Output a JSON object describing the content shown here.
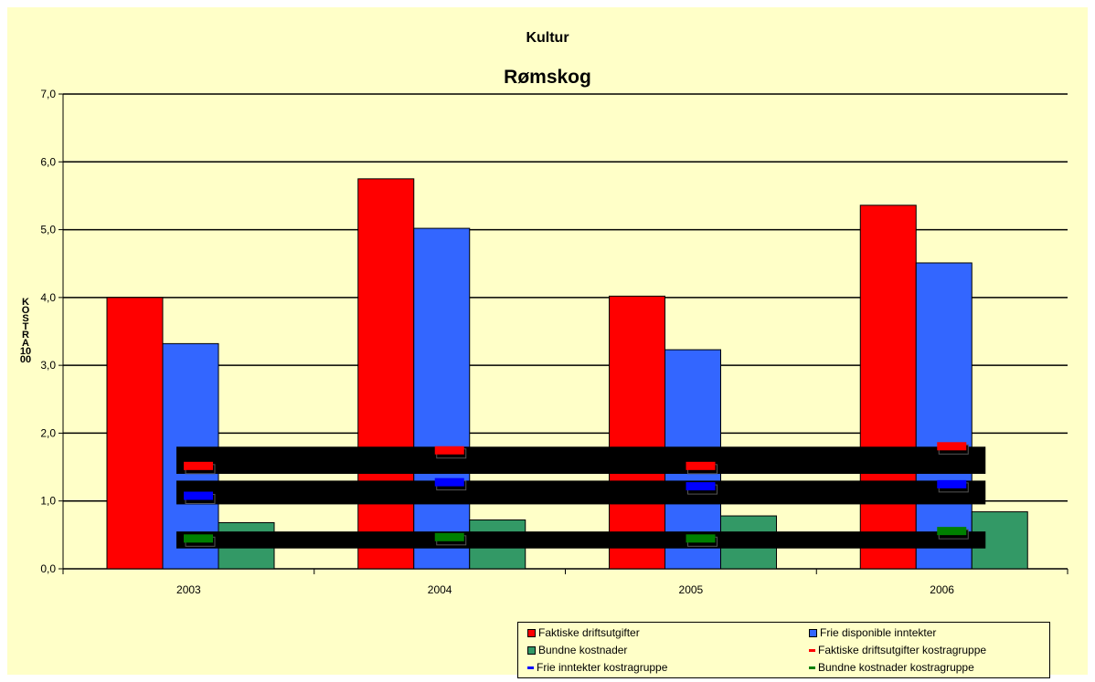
{
  "chart_data": {
    "type": "bar",
    "title": "Kultur",
    "subtitle": "Rømskog",
    "ylabel": "KOSTRA 1000",
    "categories": [
      "2003",
      "2004",
      "2005",
      "2006"
    ],
    "ylim": [
      0,
      7
    ],
    "yticks": [
      "0,0",
      "1,0",
      "2,0",
      "3,0",
      "4,0",
      "5,0",
      "6,0",
      "7,0"
    ],
    "grid": true,
    "legend_position": "bottom-right",
    "series": [
      {
        "name": "Faktiske driftsutgifter",
        "kind": "bar",
        "color": "#ff0000",
        "values": [
          4.0,
          5.75,
          4.02,
          5.36
        ]
      },
      {
        "name": "Frie disponible inntekter",
        "kind": "bar",
        "color": "#3366ff",
        "values": [
          3.32,
          5.02,
          3.23,
          4.51
        ]
      },
      {
        "name": "Bundne kostnader",
        "kind": "bar",
        "color": "#339966",
        "values": [
          0.68,
          0.72,
          0.78,
          0.84
        ]
      },
      {
        "name": "Faktiske driftsutgifter kostragruppe",
        "kind": "marker",
        "color": "#ff0000",
        "values": [
          1.51,
          1.74,
          1.51,
          1.8
        ]
      },
      {
        "name": "Frie inntekter kostragruppe",
        "kind": "marker",
        "color": "#0000ff",
        "values": [
          1.07,
          1.27,
          1.21,
          1.24
        ]
      },
      {
        "name": "Bundne kostnader kostragruppe",
        "kind": "marker",
        "color": "#008000",
        "values": [
          0.44,
          0.46,
          0.44,
          0.55
        ]
      }
    ],
    "bands": [
      {
        "y0": 1.4,
        "y1": 1.8
      },
      {
        "y0": 0.95,
        "y1": 1.3
      },
      {
        "y0": 0.3,
        "y1": 0.55
      }
    ]
  },
  "colors": {
    "background": "#ffffc8",
    "band": "#000000"
  }
}
